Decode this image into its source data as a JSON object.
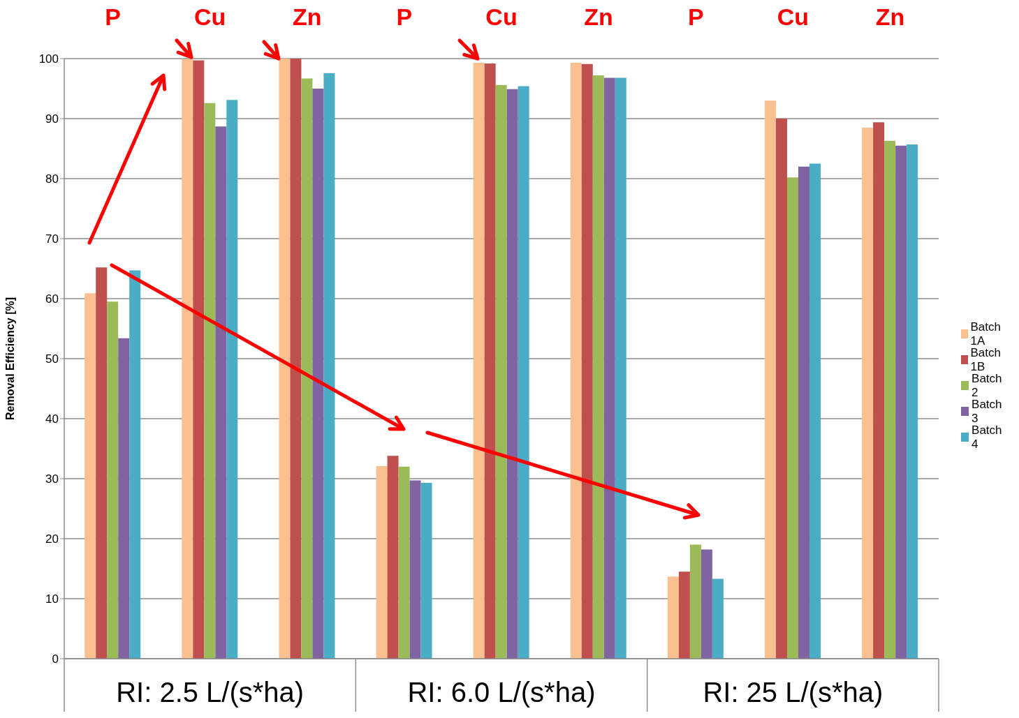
{
  "chart_data": {
    "type": "bar",
    "ylabel": "Removal Efficiency [%]",
    "categories": [
      "P",
      "Cu",
      "Zn",
      "P",
      "Cu",
      "Zn",
      "P",
      "Cu",
      "Zn"
    ],
    "series": [
      {
        "name": "Batch 1A",
        "color": "#fac090",
        "values": [
          60.9,
          99.9,
          100,
          32.1,
          99.3,
          99.3,
          13.7,
          93.0,
          88.5
        ]
      },
      {
        "name": "Batch 1B",
        "color": "#c0504d",
        "values": [
          65.2,
          99.7,
          100,
          33.8,
          99.2,
          99.1,
          14.5,
          90.0,
          89.4
        ]
      },
      {
        "name": "Batch 2",
        "color": "#9bbb59",
        "values": [
          59.5,
          92.6,
          96.7,
          32.0,
          95.6,
          97.2,
          19.0,
          80.2,
          86.3
        ]
      },
      {
        "name": "Batch 3",
        "color": "#8064a2",
        "values": [
          53.4,
          88.7,
          95.0,
          29.7,
          94.9,
          96.8,
          18.2,
          82.0,
          85.5
        ]
      },
      {
        "name": "Batch 4",
        "color": "#4bacc6",
        "values": [
          64.7,
          93.1,
          97.6,
          29.3,
          95.4,
          96.8,
          13.3,
          82.5,
          85.7
        ]
      }
    ],
    "ylim": [
      0,
      100
    ],
    "yticks": [
      0,
      10,
      20,
      30,
      40,
      50,
      60,
      70,
      80,
      90,
      100
    ],
    "grid": "y",
    "legend": "right",
    "annotations": [
      "RI: 2.5 L/(s*ha)",
      "RI: 6.0 L/(s*ha)",
      "RI: 25 L/(s*ha)"
    ]
  }
}
